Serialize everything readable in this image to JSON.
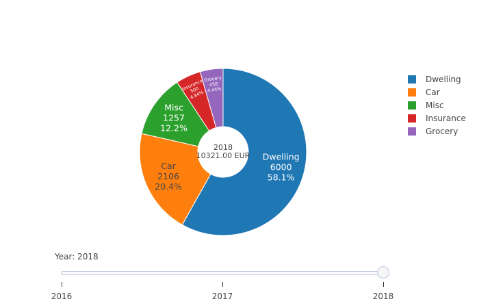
{
  "chart_data": {
    "type": "pie",
    "hole": true,
    "center_label": {
      "year": "2018",
      "total": "10321.00 EUR"
    },
    "slices": [
      {
        "name": "Dwelling",
        "value": 6000,
        "percent": "58.1%",
        "color": "#1f77b4"
      },
      {
        "name": "Car",
        "value": 2106,
        "percent": "20.4%",
        "color": "#ff7f0e"
      },
      {
        "name": "Misc",
        "value": 1257,
        "percent": "12.2%",
        "color": "#2ca02c"
      },
      {
        "name": "Insurance",
        "value": 500,
        "percent": "4.84%",
        "color": "#d62728"
      },
      {
        "name": "Grocery",
        "value": 458,
        "percent": "4.44%",
        "color": "#9467bd"
      }
    ],
    "legend_placement": "right"
  },
  "slider": {
    "label": "Year: 2018",
    "steps": [
      "2016",
      "2017",
      "2018"
    ],
    "selected": "2018"
  }
}
